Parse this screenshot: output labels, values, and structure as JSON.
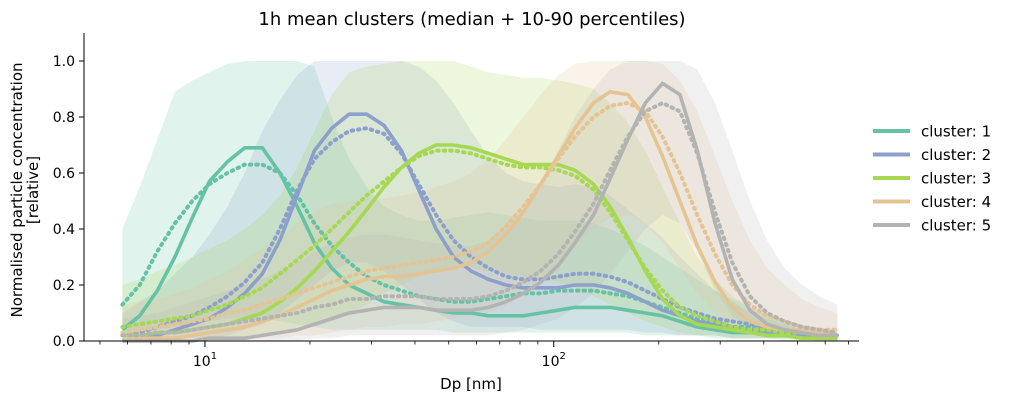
{
  "chart_data": {
    "type": "line",
    "title": "1h mean clusters (median + 10-90 percentiles)",
    "xlabel": "Dp [nm]",
    "ylabel": "Normalised particle concentration\n[relative]",
    "xscale": "log",
    "xlim": [
      4.5,
      750
    ],
    "ylim": [
      0,
      1.1
    ],
    "x_ticks": [
      10,
      100
    ],
    "x_tick_labels": [
      "10^1",
      "10^2"
    ],
    "y_ticks": [
      0.0,
      0.2,
      0.4,
      0.6,
      0.8,
      1.0
    ],
    "y_tick_labels": [
      "0.0",
      "0.2",
      "0.4",
      "0.6",
      "0.8",
      "1.0"
    ],
    "legend_position": "right",
    "line_styles": {
      "median": "solid",
      "mean": "dotted"
    },
    "x": [
      5.8,
      6.5,
      7.3,
      8.2,
      9.2,
      10.3,
      11.6,
      13,
      14.6,
      16.4,
      18.4,
      20.6,
      23.1,
      25.9,
      29.1,
      32.6,
      36.6,
      41,
      46,
      51.6,
      57.9,
      65,
      72.9,
      81.8,
      91.7,
      103,
      115,
      130,
      145,
      163,
      183,
      205,
      230,
      258,
      290,
      325,
      365,
      409,
      459,
      515,
      578,
      650
    ],
    "series": [
      {
        "name": "cluster: 1",
        "color": "#66c2a5",
        "median": [
          0.04,
          0.09,
          0.18,
          0.3,
          0.44,
          0.57,
          0.64,
          0.69,
          0.69,
          0.6,
          0.48,
          0.35,
          0.26,
          0.2,
          0.17,
          0.14,
          0.13,
          0.12,
          0.11,
          0.1,
          0.1,
          0.09,
          0.09,
          0.09,
          0.1,
          0.11,
          0.12,
          0.12,
          0.12,
          0.11,
          0.1,
          0.09,
          0.07,
          0.05,
          0.04,
          0.03,
          0.03,
          0.02,
          0.02,
          0.01,
          0.01,
          0.01
        ],
        "mean": [
          0.13,
          0.2,
          0.32,
          0.42,
          0.5,
          0.56,
          0.6,
          0.63,
          0.63,
          0.6,
          0.52,
          0.42,
          0.34,
          0.28,
          0.23,
          0.2,
          0.18,
          0.16,
          0.15,
          0.14,
          0.14,
          0.15,
          0.16,
          0.17,
          0.17,
          0.18,
          0.18,
          0.18,
          0.17,
          0.16,
          0.14,
          0.12,
          0.1,
          0.08,
          0.07,
          0.05,
          0.05,
          0.04,
          0.03,
          0.03,
          0.02,
          0.02
        ],
        "p10": [
          0.02,
          0.03,
          0.04,
          0.05,
          0.06,
          0.07,
          0.08,
          0.08,
          0.08,
          0.07,
          0.06,
          0.05,
          0.04,
          0.04,
          0.04,
          0.04,
          0.04,
          0.04,
          0.04,
          0.03,
          0.03,
          0.03,
          0.03,
          0.03,
          0.03,
          0.03,
          0.03,
          0.03,
          0.03,
          0.03,
          0.02,
          0.02,
          0.02,
          0.02,
          0.01,
          0.01,
          0.01,
          0.01,
          0.01,
          0.01,
          0.0,
          0.0
        ],
        "p90": [
          0.4,
          0.55,
          0.72,
          0.89,
          0.93,
          0.96,
          0.99,
          1.0,
          1.0,
          1.0,
          1.0,
          0.98,
          0.8,
          0.65,
          0.55,
          0.48,
          0.45,
          0.43,
          0.43,
          0.44,
          0.45,
          0.46,
          0.45,
          0.44,
          0.43,
          0.43,
          0.43,
          0.42,
          0.4,
          0.37,
          0.34,
          0.3,
          0.26,
          0.22,
          0.18,
          0.15,
          0.12,
          0.09,
          0.07,
          0.05,
          0.04,
          0.03
        ]
      },
      {
        "name": "cluster: 2",
        "color": "#8da0cb",
        "median": [
          0.0,
          0.01,
          0.02,
          0.04,
          0.06,
          0.08,
          0.12,
          0.17,
          0.24,
          0.36,
          0.52,
          0.68,
          0.76,
          0.81,
          0.81,
          0.77,
          0.68,
          0.54,
          0.4,
          0.3,
          0.25,
          0.22,
          0.2,
          0.19,
          0.19,
          0.19,
          0.2,
          0.2,
          0.19,
          0.17,
          0.14,
          0.11,
          0.09,
          0.07,
          0.06,
          0.05,
          0.04,
          0.03,
          0.02,
          0.02,
          0.02,
          0.01
        ],
        "mean": [
          0.02,
          0.03,
          0.05,
          0.07,
          0.09,
          0.12,
          0.16,
          0.21,
          0.28,
          0.4,
          0.54,
          0.65,
          0.71,
          0.75,
          0.76,
          0.74,
          0.67,
          0.56,
          0.45,
          0.36,
          0.3,
          0.26,
          0.23,
          0.22,
          0.22,
          0.23,
          0.24,
          0.24,
          0.23,
          0.21,
          0.18,
          0.15,
          0.12,
          0.1,
          0.08,
          0.07,
          0.06,
          0.05,
          0.04,
          0.03,
          0.03,
          0.02
        ],
        "p10": [
          0.0,
          0.0,
          0.0,
          0.01,
          0.01,
          0.01,
          0.02,
          0.04,
          0.06,
          0.1,
          0.15,
          0.2,
          0.25,
          0.28,
          0.28,
          0.25,
          0.2,
          0.15,
          0.1,
          0.07,
          0.05,
          0.05,
          0.05,
          0.05,
          0.04,
          0.04,
          0.04,
          0.04,
          0.04,
          0.04,
          0.03,
          0.03,
          0.02,
          0.02,
          0.02,
          0.01,
          0.01,
          0.01,
          0.01,
          0.01,
          0.0,
          0.0
        ],
        "p90": [
          0.1,
          0.14,
          0.18,
          0.24,
          0.3,
          0.38,
          0.48,
          0.6,
          0.75,
          0.86,
          0.95,
          1.0,
          1.0,
          1.0,
          1.0,
          1.0,
          1.0,
          0.98,
          0.93,
          0.85,
          0.75,
          0.66,
          0.6,
          0.57,
          0.56,
          0.55,
          0.56,
          0.55,
          0.52,
          0.47,
          0.42,
          0.37,
          0.3,
          0.24,
          0.18,
          0.14,
          0.1,
          0.08,
          0.06,
          0.04,
          0.03,
          0.03
        ]
      },
      {
        "name": "cluster: 3",
        "color": "#a6d854",
        "median": [
          0.02,
          0.02,
          0.03,
          0.03,
          0.04,
          0.05,
          0.06,
          0.08,
          0.1,
          0.14,
          0.19,
          0.25,
          0.32,
          0.39,
          0.47,
          0.55,
          0.62,
          0.67,
          0.7,
          0.7,
          0.69,
          0.67,
          0.65,
          0.63,
          0.63,
          0.63,
          0.61,
          0.56,
          0.48,
          0.37,
          0.25,
          0.15,
          0.09,
          0.06,
          0.05,
          0.04,
          0.03,
          0.02,
          0.02,
          0.01,
          0.01,
          0.01
        ],
        "mean": [
          0.05,
          0.06,
          0.07,
          0.08,
          0.09,
          0.11,
          0.13,
          0.16,
          0.19,
          0.24,
          0.29,
          0.34,
          0.4,
          0.46,
          0.52,
          0.57,
          0.62,
          0.66,
          0.68,
          0.68,
          0.67,
          0.65,
          0.63,
          0.62,
          0.62,
          0.61,
          0.59,
          0.54,
          0.46,
          0.36,
          0.26,
          0.18,
          0.12,
          0.09,
          0.07,
          0.05,
          0.04,
          0.04,
          0.03,
          0.03,
          0.02,
          0.02
        ],
        "p10": [
          0.0,
          0.0,
          0.0,
          0.0,
          0.01,
          0.01,
          0.01,
          0.01,
          0.02,
          0.03,
          0.04,
          0.05,
          0.07,
          0.1,
          0.13,
          0.17,
          0.2,
          0.23,
          0.25,
          0.26,
          0.26,
          0.25,
          0.24,
          0.23,
          0.22,
          0.21,
          0.19,
          0.16,
          0.13,
          0.1,
          0.07,
          0.05,
          0.03,
          0.02,
          0.02,
          0.01,
          0.01,
          0.01,
          0.0,
          0.0,
          0.0,
          0.0
        ],
        "p90": [
          0.2,
          0.22,
          0.25,
          0.27,
          0.3,
          0.33,
          0.36,
          0.4,
          0.45,
          0.52,
          0.62,
          0.75,
          0.88,
          0.96,
          0.98,
          0.99,
          1.0,
          1.0,
          1.0,
          1.0,
          0.98,
          0.96,
          0.95,
          0.94,
          0.94,
          0.93,
          0.92,
          0.9,
          0.85,
          0.78,
          0.68,
          0.55,
          0.42,
          0.3,
          0.22,
          0.16,
          0.12,
          0.09,
          0.07,
          0.05,
          0.04,
          0.04
        ]
      },
      {
        "name": "cluster: 4",
        "color": "#e5c494",
        "median": [
          0.0,
          0.01,
          0.01,
          0.01,
          0.02,
          0.03,
          0.04,
          0.05,
          0.07,
          0.09,
          0.12,
          0.15,
          0.18,
          0.2,
          0.22,
          0.23,
          0.23,
          0.24,
          0.25,
          0.26,
          0.28,
          0.32,
          0.38,
          0.46,
          0.56,
          0.66,
          0.76,
          0.85,
          0.89,
          0.88,
          0.8,
          0.66,
          0.5,
          0.34,
          0.21,
          0.12,
          0.07,
          0.05,
          0.04,
          0.04,
          0.03,
          0.02
        ],
        "mean": [
          0.03,
          0.04,
          0.05,
          0.06,
          0.07,
          0.08,
          0.1,
          0.11,
          0.13,
          0.15,
          0.17,
          0.19,
          0.21,
          0.23,
          0.25,
          0.26,
          0.27,
          0.28,
          0.29,
          0.3,
          0.32,
          0.35,
          0.41,
          0.48,
          0.56,
          0.65,
          0.73,
          0.8,
          0.84,
          0.85,
          0.82,
          0.73,
          0.6,
          0.45,
          0.31,
          0.2,
          0.13,
          0.09,
          0.07,
          0.05,
          0.04,
          0.04
        ],
        "p10": [
          0.0,
          0.0,
          0.0,
          0.0,
          0.0,
          0.0,
          0.0,
          0.01,
          0.01,
          0.01,
          0.02,
          0.02,
          0.03,
          0.04,
          0.05,
          0.05,
          0.06,
          0.06,
          0.07,
          0.08,
          0.09,
          0.1,
          0.13,
          0.16,
          0.21,
          0.27,
          0.34,
          0.4,
          0.44,
          0.45,
          0.42,
          0.35,
          0.26,
          0.17,
          0.1,
          0.06,
          0.04,
          0.03,
          0.02,
          0.02,
          0.01,
          0.01
        ],
        "p90": [
          0.13,
          0.14,
          0.15,
          0.17,
          0.19,
          0.22,
          0.25,
          0.29,
          0.33,
          0.37,
          0.42,
          0.46,
          0.49,
          0.5,
          0.51,
          0.51,
          0.52,
          0.53,
          0.55,
          0.57,
          0.6,
          0.65,
          0.72,
          0.8,
          0.88,
          0.95,
          0.99,
          1.0,
          1.0,
          1.0,
          1.0,
          0.99,
          0.93,
          0.82,
          0.66,
          0.5,
          0.36,
          0.26,
          0.2,
          0.15,
          0.12,
          0.1
        ]
      },
      {
        "name": "cluster: 5",
        "color": "#b3b3b3",
        "median": [
          0.0,
          0.0,
          0.0,
          0.0,
          0.0,
          0.01,
          0.01,
          0.01,
          0.02,
          0.03,
          0.04,
          0.06,
          0.08,
          0.1,
          0.11,
          0.12,
          0.12,
          0.12,
          0.11,
          0.11,
          0.11,
          0.12,
          0.14,
          0.17,
          0.21,
          0.27,
          0.35,
          0.45,
          0.58,
          0.72,
          0.85,
          0.92,
          0.88,
          0.68,
          0.42,
          0.22,
          0.11,
          0.06,
          0.04,
          0.03,
          0.02,
          0.02
        ],
        "mean": [
          0.02,
          0.02,
          0.03,
          0.03,
          0.04,
          0.05,
          0.06,
          0.07,
          0.08,
          0.09,
          0.1,
          0.12,
          0.13,
          0.15,
          0.15,
          0.16,
          0.16,
          0.16,
          0.15,
          0.15,
          0.15,
          0.16,
          0.18,
          0.21,
          0.25,
          0.31,
          0.39,
          0.49,
          0.61,
          0.73,
          0.82,
          0.85,
          0.82,
          0.67,
          0.46,
          0.28,
          0.16,
          0.1,
          0.07,
          0.05,
          0.04,
          0.03
        ],
        "p10": [
          0.0,
          0.0,
          0.0,
          0.0,
          0.0,
          0.0,
          0.0,
          0.0,
          0.0,
          0.0,
          0.0,
          0.01,
          0.01,
          0.02,
          0.02,
          0.02,
          0.02,
          0.02,
          0.02,
          0.02,
          0.02,
          0.02,
          0.03,
          0.04,
          0.06,
          0.08,
          0.12,
          0.17,
          0.24,
          0.32,
          0.4,
          0.45,
          0.42,
          0.32,
          0.18,
          0.09,
          0.05,
          0.03,
          0.02,
          0.01,
          0.01,
          0.01
        ],
        "p90": [
          0.08,
          0.09,
          0.1,
          0.12,
          0.14,
          0.16,
          0.18,
          0.2,
          0.22,
          0.25,
          0.28,
          0.32,
          0.35,
          0.37,
          0.38,
          0.38,
          0.37,
          0.36,
          0.35,
          0.34,
          0.34,
          0.36,
          0.4,
          0.47,
          0.57,
          0.68,
          0.8,
          0.9,
          0.97,
          1.0,
          1.0,
          1.0,
          1.0,
          0.97,
          0.85,
          0.68,
          0.5,
          0.36,
          0.26,
          0.2,
          0.16,
          0.13
        ]
      }
    ]
  }
}
